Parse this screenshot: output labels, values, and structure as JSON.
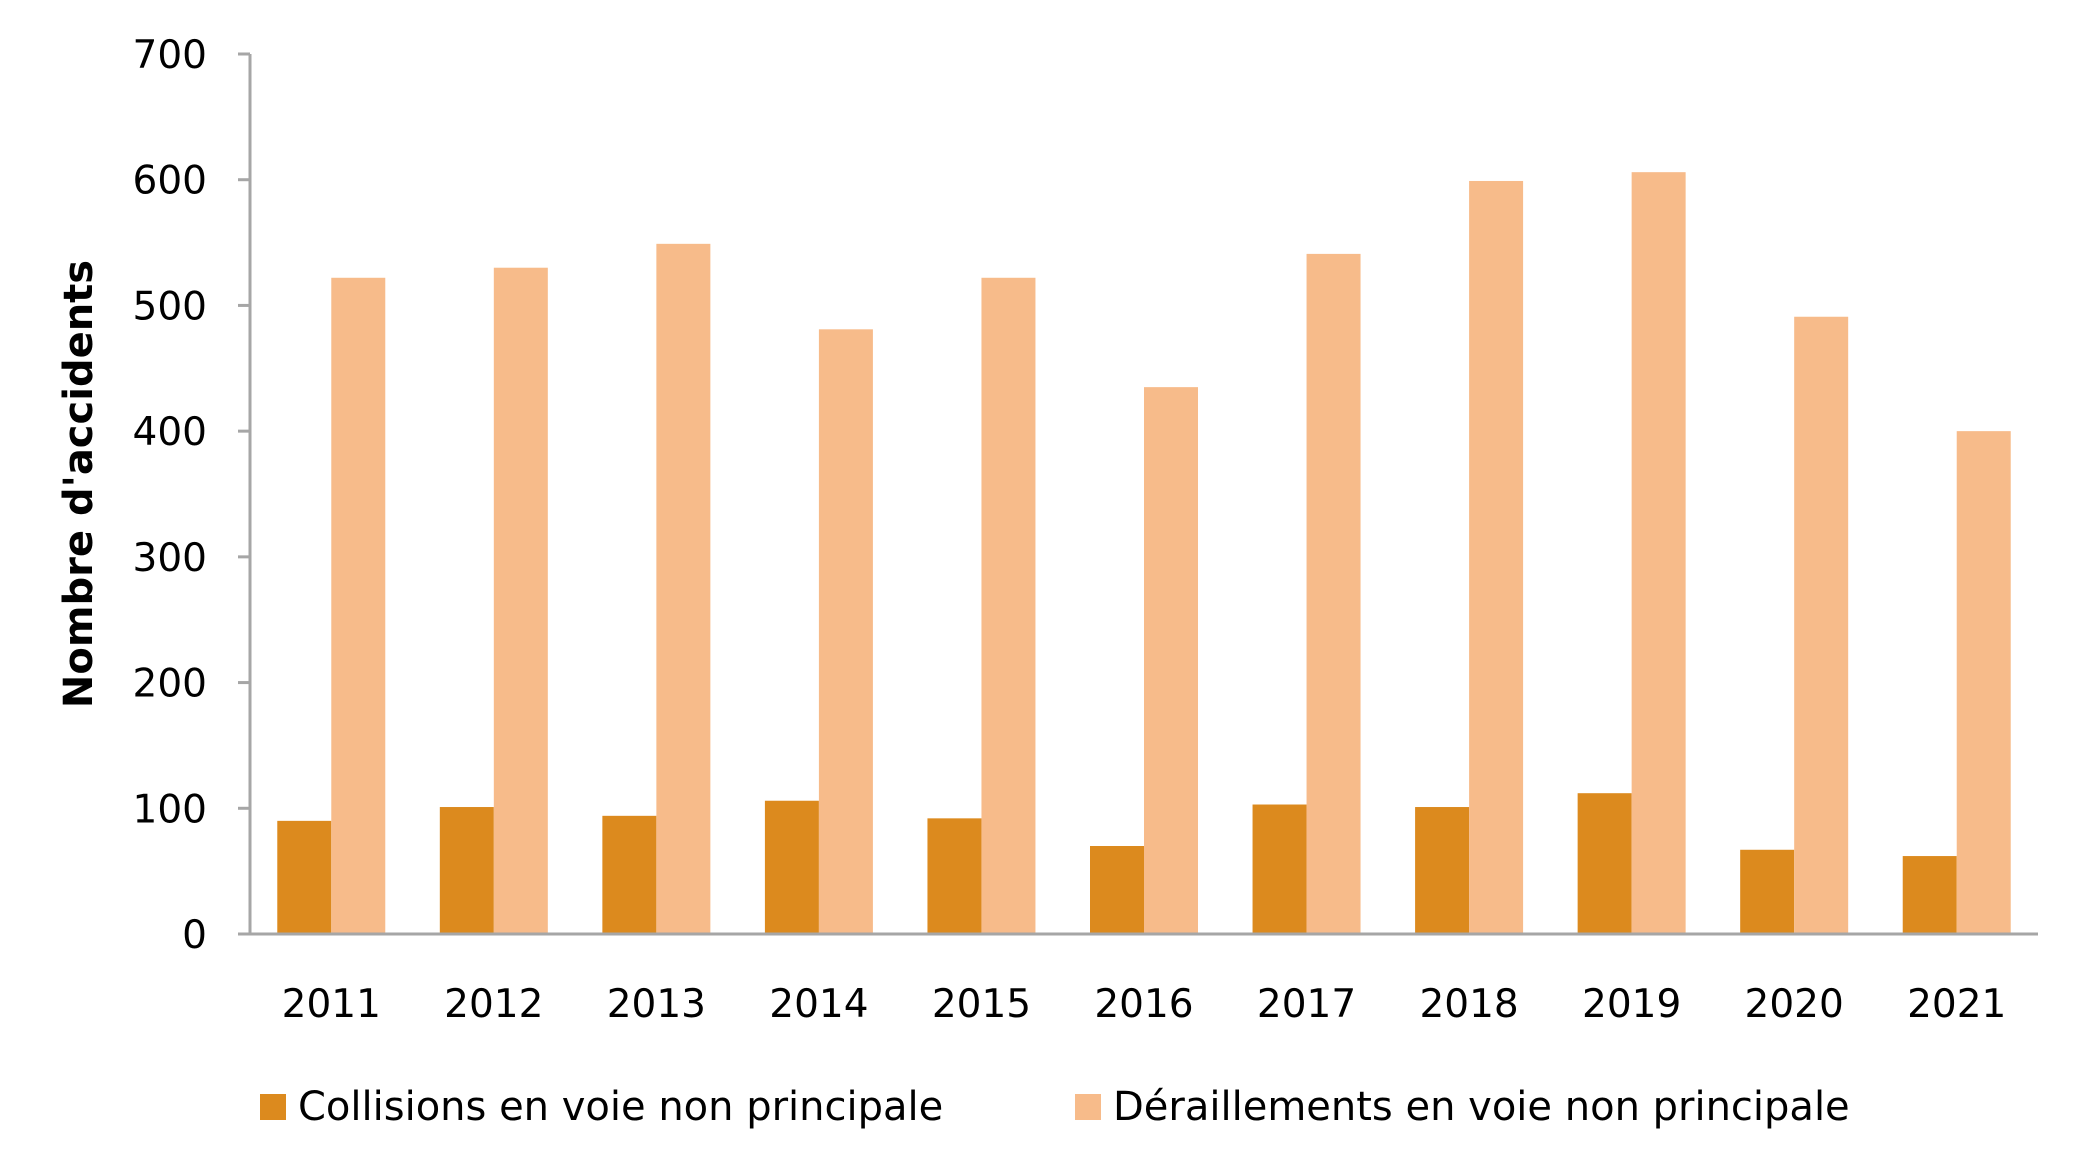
{
  "chart_data": {
    "type": "bar",
    "title": "",
    "xlabel": "",
    "ylabel": "Nombre d'accidents",
    "ylim": [
      0,
      700
    ],
    "yticks": [
      "0",
      "100",
      "200",
      "300",
      "400",
      "500",
      "600",
      "700"
    ],
    "grid": false,
    "legend_position": "bottom",
    "categories": [
      "2011",
      "2012",
      "2013",
      "2014",
      "2015",
      "2016",
      "2017",
      "2018",
      "2019",
      "2020",
      "2021"
    ],
    "series": [
      {
        "name": "Collisions en voie non principale",
        "color": "#dc8a1e",
        "values": [
          90,
          101,
          94,
          106,
          92,
          70,
          103,
          101,
          112,
          67,
          62
        ]
      },
      {
        "name": "Déraillements en voie non principale",
        "color": "#f7bb8a",
        "values": [
          522,
          530,
          549,
          481,
          522,
          435,
          541,
          599,
          606,
          491,
          400
        ]
      }
    ]
  }
}
